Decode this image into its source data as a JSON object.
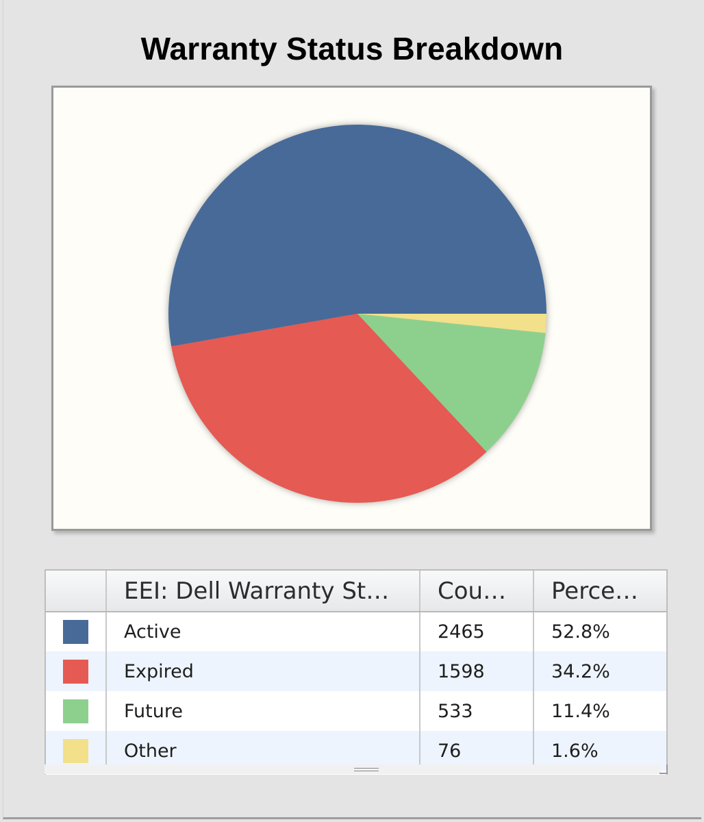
{
  "title": "Warranty Status Breakdown",
  "table": {
    "headers": [
      "",
      "EEI: Dell Warranty St…",
      "Cou…",
      "Perce…"
    ],
    "rows": [
      {
        "label": "Active",
        "count": "2465",
        "percent": "52.8%",
        "color": "#486a98"
      },
      {
        "label": "Expired",
        "count": "1598",
        "percent": "34.2%",
        "color": "#e55a53"
      },
      {
        "label": "Future",
        "count": "533",
        "percent": "11.4%",
        "color": "#8dd08e"
      },
      {
        "label": "Other",
        "count": "76",
        "percent": "1.6%",
        "color": "#f2e08a"
      }
    ]
  },
  "colors": {
    "active": "#486a98",
    "expired": "#e55a53",
    "future": "#8dd08e",
    "other": "#f2e08a",
    "chart_background": "#fefdf7",
    "page_background": "#e4e4e4"
  },
  "chart_data": {
    "type": "pie",
    "title": "Warranty Status Breakdown",
    "categories": [
      "Active",
      "Expired",
      "Future",
      "Other"
    ],
    "values": [
      2465,
      1598,
      533,
      76
    ],
    "percentages": [
      52.8,
      34.2,
      11.4,
      1.6
    ],
    "colors": [
      "#486a98",
      "#e55a53",
      "#8dd08e",
      "#f2e08a"
    ],
    "start_angle_deg": 0,
    "direction": "counterclockwise",
    "legend": "table below chart",
    "legend_columns": [
      "EEI: Dell Warranty St…",
      "Cou…",
      "Perce…"
    ]
  }
}
